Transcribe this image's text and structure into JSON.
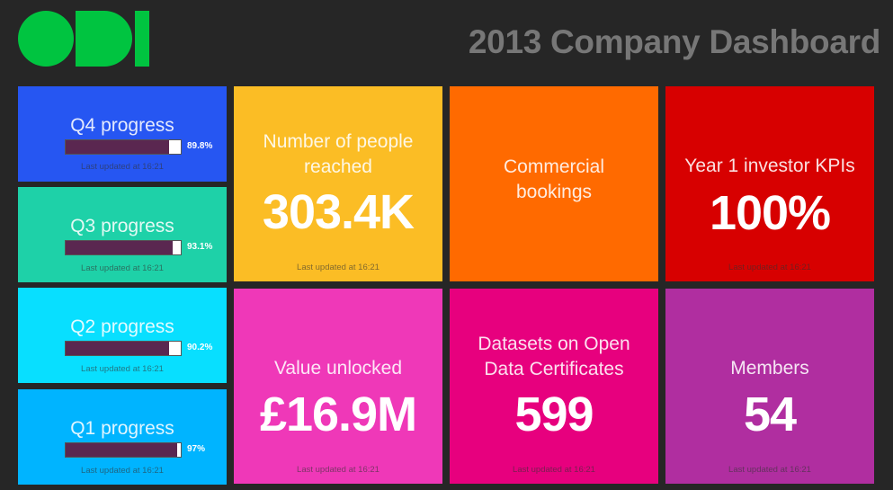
{
  "header": {
    "logo_text": "ODI",
    "title": "2013 Company Dashboard",
    "logo_color": "#00c440"
  },
  "progress_tiles": [
    {
      "title": "Q4 progress",
      "percent_label": "89.8%",
      "fraction": 0.898,
      "updated": "Last updated at 16:21",
      "color": "#2656f2"
    },
    {
      "title": "Q3 progress",
      "percent_label": "93.1%",
      "fraction": 0.931,
      "updated": "Last updated at 16:21",
      "color": "#1ed1a8"
    },
    {
      "title": "Q2 progress",
      "percent_label": "90.2%",
      "fraction": 0.902,
      "updated": "Last updated at 16:21",
      "color": "#08dfff"
    },
    {
      "title": "Q1 progress",
      "percent_label": "97%",
      "fraction": 0.97,
      "updated": "Last updated at 16:21",
      "color": "#00b4ff"
    }
  ],
  "metric_tiles": [
    {
      "title": "Number of people reached",
      "value": "303.4K",
      "updated": "Last updated at 16:21",
      "color": "#fbbd25"
    },
    {
      "title": "Commercial bookings",
      "value": "",
      "updated": "",
      "color": "#ff6a00"
    },
    {
      "title": "Year 1 investor KPIs",
      "value": "100%",
      "updated": "Last updated at 16:21",
      "color": "#d70000"
    },
    {
      "title": "Value unlocked",
      "value": "£16.9M",
      "updated": "Last updated at 16:21",
      "color": "#ef38b8"
    },
    {
      "title": "Datasets on Open Data Certificates",
      "value": "599",
      "updated": "Last updated at 16:21",
      "color": "#e7007e"
    },
    {
      "title": "Members",
      "value": "54",
      "updated": "Last updated at 16:21",
      "color": "#b02ea0"
    }
  ]
}
